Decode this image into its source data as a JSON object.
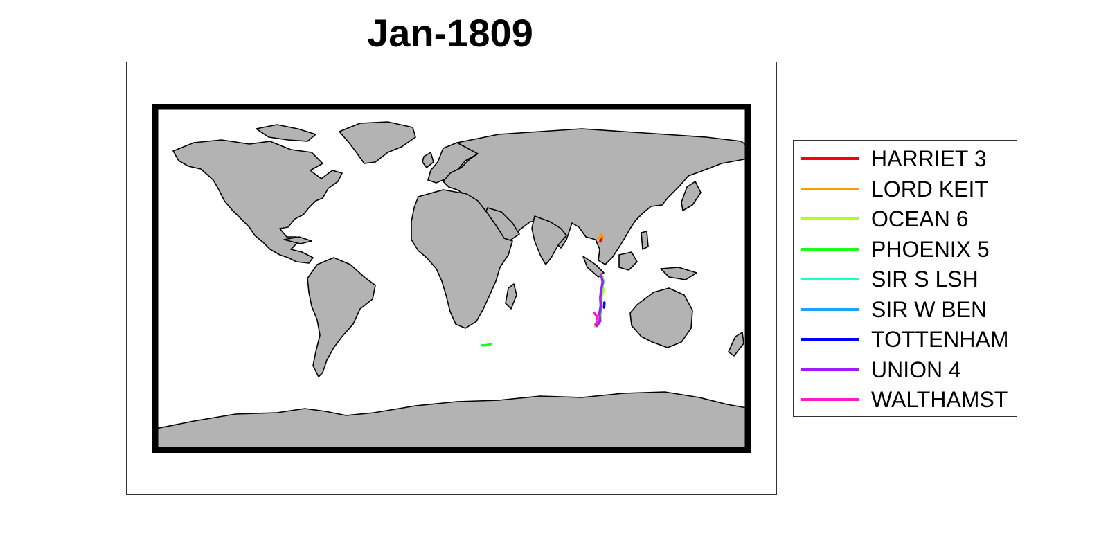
{
  "title": "Jan-1809",
  "map": {
    "land_color": "#b3b3b3",
    "coast_color": "#000000",
    "frame_color": "#000000",
    "projection": "equirectangular"
  },
  "legend": [
    {
      "name": "HARRIET 3",
      "color": "#ff0000"
    },
    {
      "name": "LORD KEIT",
      "color": "#ff9900"
    },
    {
      "name": "OCEAN 6",
      "color": "#b3ff1a"
    },
    {
      "name": "PHOENIX 5",
      "color": "#1aff1a"
    },
    {
      "name": "SIR S LSH",
      "color": "#1affc6"
    },
    {
      "name": "SIR W BEN",
      "color": "#1aa3ff"
    },
    {
      "name": "TOTTENHAM",
      "color": "#0000ff"
    },
    {
      "name": "UNION 4",
      "color": "#a31aff"
    },
    {
      "name": "WALTHAMST",
      "color": "#ff1ac6"
    }
  ],
  "chart_data": {
    "type": "map",
    "title": "Jan-1809",
    "series": [
      {
        "name": "HARRIET 3",
        "points": [
          [
            90.5,
            21.0
          ],
          [
            89.5,
            19.0
          ]
        ]
      },
      {
        "name": "LORD KEIT",
        "points": [
          [
            89.0,
            20.5
          ],
          [
            90.0,
            22.5
          ],
          [
            91.0,
            21.5
          ]
        ]
      },
      {
        "name": "OCEAN 6",
        "points": [
          [
            91.0,
            0.5
          ],
          [
            90.5,
            -3.0
          ],
          [
            91.5,
            -6.0
          ],
          [
            90.5,
            -9.0
          ],
          [
            90.0,
            -13.0
          ],
          [
            89.5,
            -17.0
          ],
          [
            90.0,
            -20.0
          ],
          [
            88.0,
            -23.0
          ],
          [
            86.5,
            -25.0
          ]
        ]
      },
      {
        "name": "PHOENIX 5",
        "points": [
          [
            18.5,
            -34.5
          ],
          [
            20.0,
            -34.6
          ],
          [
            22.0,
            -34.2
          ],
          [
            23.5,
            -33.9
          ]
        ]
      },
      {
        "name": "SIR S LSH",
        "points": [
          [
            91.5,
            -1.0
          ],
          [
            90.8,
            -4.0
          ],
          [
            90.0,
            -8.0
          ],
          [
            89.6,
            -11.0
          ]
        ]
      },
      {
        "name": "SIR W BEN",
        "points": [
          [
            90.2,
            -12.0
          ],
          [
            89.9,
            -15.0
          ],
          [
            89.5,
            -18.0
          ]
        ]
      },
      {
        "name": "TOTTENHAM",
        "points": [
          [
            92.0,
            -12.5
          ],
          [
            91.8,
            -15.0
          ]
        ]
      },
      {
        "name": "UNION 4",
        "points": [
          [
            90.0,
            2.0
          ],
          [
            91.0,
            -2.0
          ],
          [
            90.0,
            -6.0
          ],
          [
            89.5,
            -10.0
          ],
          [
            89.8,
            -14.0
          ],
          [
            89.0,
            -18.0
          ],
          [
            89.5,
            -22.0
          ],
          [
            87.5,
            -24.5
          ]
        ]
      },
      {
        "name": "WALTHAMST",
        "points": [
          [
            86.0,
            -18.0
          ],
          [
            87.5,
            -19.5
          ],
          [
            88.0,
            -22.0
          ],
          [
            86.5,
            -24.0
          ]
        ]
      }
    ]
  }
}
